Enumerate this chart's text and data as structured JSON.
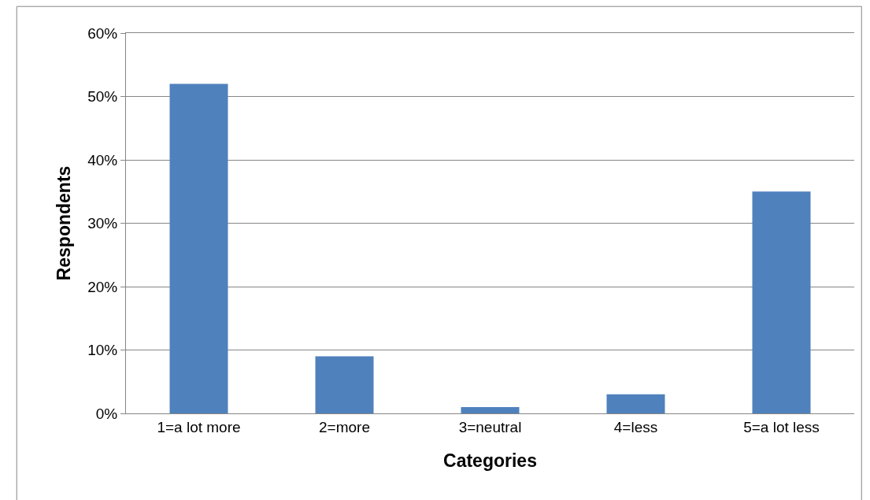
{
  "chart_data": {
    "type": "bar",
    "xlabel": "Categories",
    "ylabel": "Respondents",
    "categories": [
      "1=a lot more",
      "2=more",
      "3=neutral",
      "4=less",
      "5=a lot less"
    ],
    "values": [
      52,
      9,
      1,
      3,
      35
    ],
    "color": "#4f81bd",
    "ylim": [
      0,
      60
    ],
    "yticks": [
      {
        "value": 0,
        "label": "0%"
      },
      {
        "value": 10,
        "label": "10%"
      },
      {
        "value": 20,
        "label": "20%"
      },
      {
        "value": 30,
        "label": "30%"
      },
      {
        "value": 40,
        "label": "40%"
      },
      {
        "value": 50,
        "label": "50%"
      },
      {
        "value": 60,
        "label": "60%"
      }
    ],
    "grid": "y"
  }
}
